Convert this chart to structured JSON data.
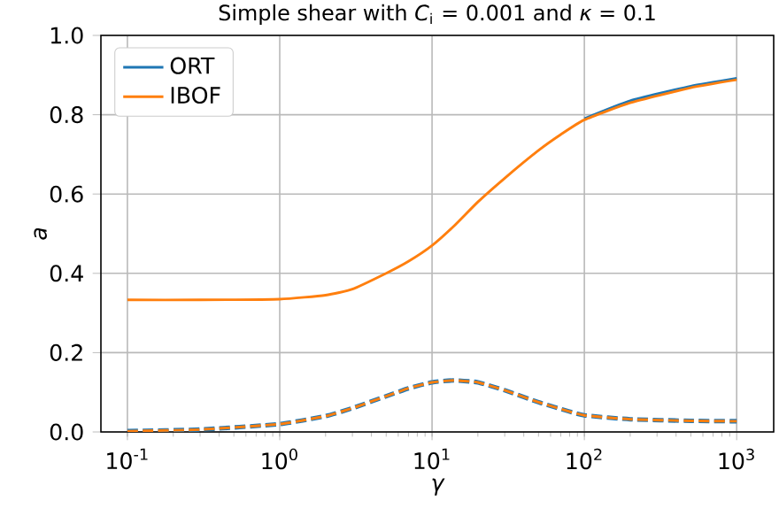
{
  "chart_data": {
    "type": "line",
    "title": "Simple shear with *C*$_{i}$ = 0.001 and *κ* = 0.1",
    "xlabel": "γ",
    "ylabel": "a",
    "x": [
      0.1,
      0.3,
      1,
      2,
      3,
      5,
      7,
      10,
      14,
      20,
      30,
      50,
      70,
      100,
      200,
      500,
      1000
    ],
    "series": [
      {
        "name": "ORT",
        "color": "#1f77b4",
        "line_style": "solid",
        "values": [
          null,
          null,
          null,
          null,
          null,
          null,
          null,
          null,
          null,
          null,
          null,
          null,
          null,
          0.79,
          0.835,
          0.872,
          0.892
        ]
      },
      {
        "name": "IBOF",
        "color": "#ff7f0e",
        "line_style": "solid",
        "values": [
          0.333,
          0.333,
          0.335,
          0.345,
          0.36,
          0.4,
          0.43,
          0.47,
          0.52,
          0.58,
          0.64,
          0.71,
          0.75,
          0.787,
          0.83,
          0.868,
          0.888
        ]
      },
      {
        "color": "#1f77b4",
        "line_style": "dashed",
        "values": [
          0.002,
          0.006,
          0.02,
          0.04,
          0.06,
          0.09,
          0.11,
          0.125,
          0.13,
          0.125,
          0.105,
          0.075,
          0.058,
          0.042,
          0.032,
          0.028,
          0.027
        ]
      },
      {
        "color": "#ff7f0e",
        "line_style": "dashed",
        "values": [
          0.002,
          0.006,
          0.02,
          0.04,
          0.06,
          0.09,
          0.11,
          0.125,
          0.13,
          0.125,
          0.105,
          0.075,
          0.058,
          0.042,
          0.032,
          0.028,
          0.027
        ]
      }
    ],
    "log": "x",
    "xlim": [
      0.067,
      1750
    ],
    "ylim": [
      0,
      1
    ],
    "xticks": [
      {
        "value": 0.1,
        "label": "10$^{-1}$"
      },
      {
        "value": 1,
        "label": "10$^{0}$"
      },
      {
        "value": 10,
        "label": "10$^{1}$"
      },
      {
        "value": 100,
        "label": "10$^{2}$"
      },
      {
        "value": 1000,
        "label": "10$^{3}$"
      }
    ],
    "yticks": [
      {
        "value": 0,
        "label": "0.0"
      },
      {
        "value": 0.2,
        "label": "0.2"
      },
      {
        "value": 0.4,
        "label": "0.4"
      },
      {
        "value": 0.6,
        "label": "0.6"
      },
      {
        "value": 0.8,
        "label": "0.8"
      },
      {
        "value": 1.0,
        "label": "1.0"
      }
    ],
    "grid": true,
    "legend": "top left"
  }
}
